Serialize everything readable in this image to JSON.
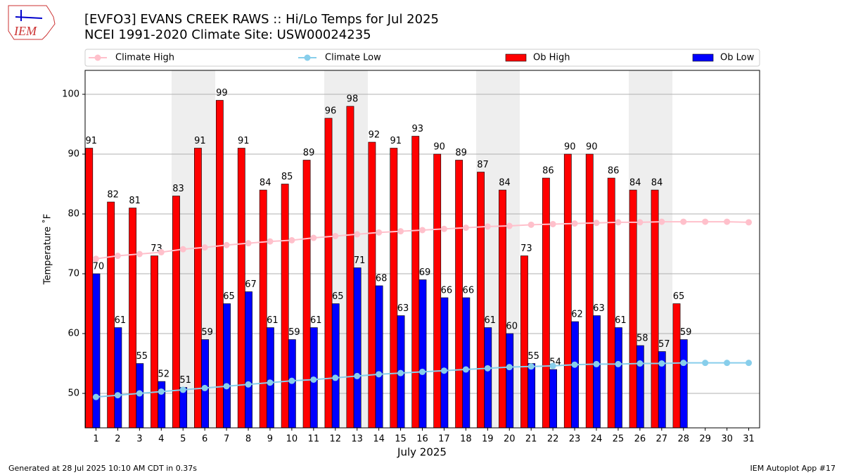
{
  "logo_text": "IEM",
  "footer_left": "Generated at 28 Jul 2025 10:10 AM CDT in 0.37s",
  "footer_right": "IEM Autoplot App #17",
  "chart_data": {
    "type": "bar",
    "title": "[EVFO3] EVANS CREEK RAWS :: Hi/Lo Temps for Jul 2025",
    "subtitle": "NCEI 1991-2020 Climate Site: USW00024235",
    "x_label": "July 2025",
    "y_label": "Temperature ˚F",
    "categories": [
      "1",
      "2",
      "3",
      "4",
      "5",
      "6",
      "7",
      "8",
      "9",
      "10",
      "11",
      "12",
      "13",
      "14",
      "15",
      "16",
      "17",
      "18",
      "19",
      "20",
      "21",
      "22",
      "23",
      "24",
      "25",
      "26",
      "27",
      "28",
      "29",
      "30",
      "31"
    ],
    "series": [
      {
        "name": "Climate High",
        "kind": "line",
        "color": "#ffc0cb",
        "values": [
          72.5,
          73.0,
          73.3,
          73.6,
          74.1,
          74.4,
          74.8,
          75.1,
          75.4,
          75.6,
          76.0,
          76.3,
          76.6,
          76.9,
          77.1,
          77.3,
          77.5,
          77.7,
          77.9,
          78.0,
          78.2,
          78.3,
          78.4,
          78.5,
          78.6,
          78.6,
          78.7,
          78.7,
          78.7,
          78.7,
          78.6
        ]
      },
      {
        "name": "Climate Low",
        "kind": "line",
        "color": "#87ceeb",
        "values": [
          49.4,
          49.7,
          50.0,
          50.3,
          50.6,
          50.9,
          51.2,
          51.5,
          51.8,
          52.1,
          52.3,
          52.6,
          52.9,
          53.2,
          53.4,
          53.6,
          53.8,
          54.0,
          54.2,
          54.4,
          54.5,
          54.6,
          54.8,
          54.9,
          54.9,
          55.0,
          55.0,
          55.1,
          55.1,
          55.1,
          55.1
        ]
      },
      {
        "name": "Ob High",
        "kind": "bar",
        "color": "#ff0000",
        "values": [
          91,
          82,
          81,
          73,
          83,
          91,
          99,
          91,
          84,
          85,
          89,
          96,
          98,
          92,
          91,
          93,
          90,
          89,
          87,
          84,
          73,
          86,
          90,
          90,
          86,
          84,
          84,
          65,
          null,
          null,
          null
        ]
      },
      {
        "name": "Ob Low",
        "kind": "bar",
        "color": "#0000ff",
        "values": [
          70,
          61,
          55,
          52,
          51,
          59,
          65,
          67,
          61,
          59,
          61,
          65,
          71,
          68,
          63,
          69,
          66,
          66,
          61,
          60,
          55,
          54,
          62,
          63,
          61,
          58,
          57,
          59,
          null,
          null,
          null
        ]
      }
    ],
    "ylim": [
      44.24,
      104
    ],
    "yticks": [
      50,
      60,
      70,
      80,
      90,
      100
    ],
    "grid": true
  }
}
